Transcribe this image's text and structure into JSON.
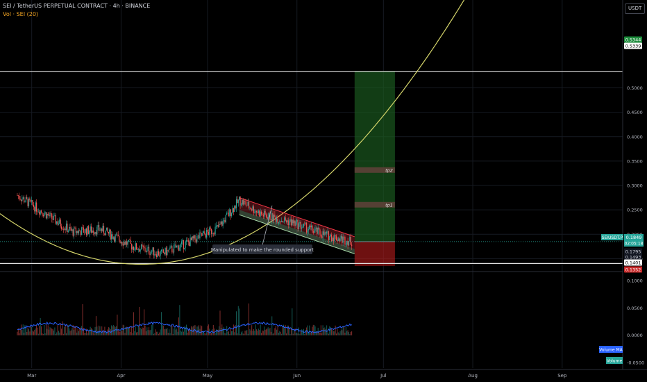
{
  "header": {
    "title": "SEI / TetherUS PERPETUAL CONTRACT · 4h · BINANCE",
    "volume_label": "Vol · SEI (20)"
  },
  "currency_label": "USDT",
  "chart_data": {
    "type": "candlestick",
    "symbol": "SEIUSDT.P",
    "timeframe": "4h",
    "x_tick_labels": [
      "Mar",
      "Apr",
      "May",
      "Jun",
      "Jul",
      "Aug",
      "Sep"
    ],
    "price_axis_ticks": [
      "0.5000",
      "0.4500",
      "0.4000",
      "0.3500",
      "0.3000",
      "0.2500",
      "0.2000",
      "0.1500"
    ],
    "price_axis_range": [
      0.125,
      0.68
    ],
    "volume_axis_ticks": [
      "0.1000",
      "0.0500",
      "0.0000",
      "-0.0500"
    ],
    "price_path_approx": [
      {
        "date": "2024-02-25",
        "close": 0.28
      },
      {
        "date": "2024-03-05",
        "close": 0.245
      },
      {
        "date": "2024-03-15",
        "close": 0.205
      },
      {
        "date": "2024-03-25",
        "close": 0.21
      },
      {
        "date": "2024-04-05",
        "close": 0.175
      },
      {
        "date": "2024-04-15",
        "close": 0.16
      },
      {
        "date": "2024-04-25",
        "close": 0.185
      },
      {
        "date": "2024-05-05",
        "close": 0.215
      },
      {
        "date": "2024-05-12",
        "close": 0.27
      },
      {
        "date": "2024-05-20",
        "close": 0.24
      },
      {
        "date": "2024-05-30",
        "close": 0.225
      },
      {
        "date": "2024-06-10",
        "close": 0.2
      },
      {
        "date": "2024-06-20",
        "close": 0.185
      }
    ],
    "last_price": "0.1849",
    "countdown": "02:05:18",
    "price_tags": [
      {
        "text": "0.5344",
        "kind": "target"
      },
      {
        "text": "0.5339",
        "kind": "level"
      },
      {
        "text": "0.1795",
        "kind": "neutral"
      },
      {
        "text": "0.1493",
        "kind": "neutral"
      },
      {
        "text": "0.1401",
        "kind": "level"
      },
      {
        "text": "0.1352",
        "kind": "stop"
      }
    ],
    "horizontal_levels": [
      0.5339,
      0.1401
    ],
    "position": {
      "entry": 0.1849,
      "target": 0.5344,
      "stop": 0.1352,
      "start_date": "2024-06-21",
      "end_date": "2024-07-05"
    },
    "tp_levels": [
      {
        "label": "tp2",
        "price": 0.3316
      },
      {
        "label": "tp1",
        "price": 0.2605
      }
    ],
    "annotation": "Manipulated to make the rounded support",
    "volume_legend": [
      "Volume MA",
      "Volume"
    ],
    "colors": {
      "up": "#26a69a",
      "down": "#ef5350",
      "curve": "#d4d46a",
      "channel": "#f23645",
      "support": "#a5d6a7",
      "volume_ma": "#2962ff"
    }
  }
}
